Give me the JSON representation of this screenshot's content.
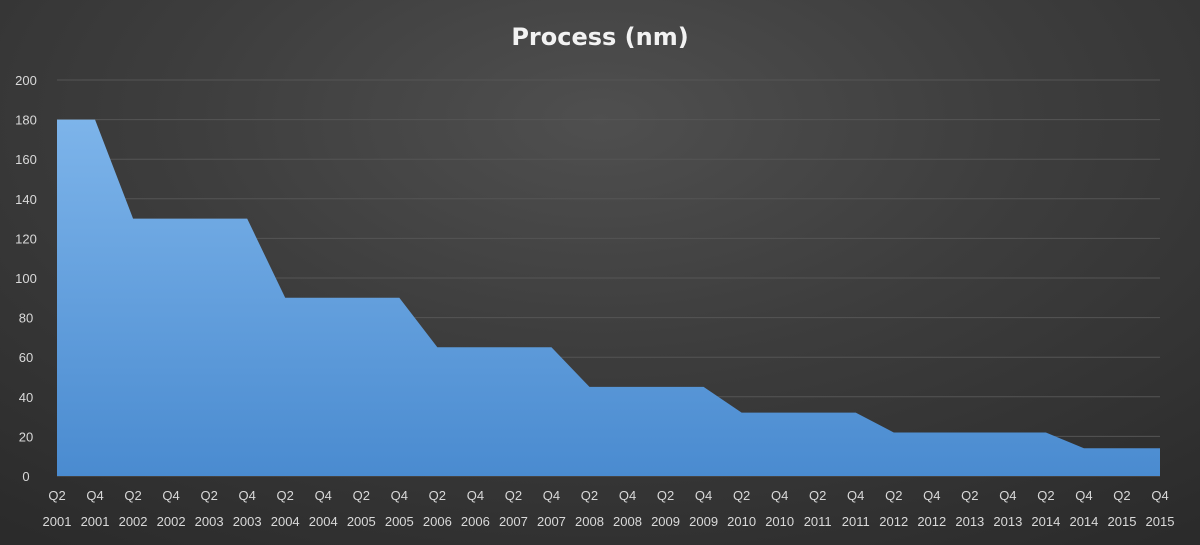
{
  "chart_data": {
    "type": "area",
    "title": "Process  (nm)",
    "xlabel": "",
    "ylabel": "",
    "ylim": [
      0,
      200
    ],
    "yticks": [
      0,
      20,
      40,
      60,
      80,
      100,
      120,
      140,
      160,
      180,
      200
    ],
    "grid": true,
    "legend": "none",
    "fill_color": "#5b9bd5",
    "categories": [
      {
        "q": "Q2",
        "y": "2001"
      },
      {
        "q": "Q4",
        "y": "2001"
      },
      {
        "q": "Q2",
        "y": "2002"
      },
      {
        "q": "Q4",
        "y": "2002"
      },
      {
        "q": "Q2",
        "y": "2003"
      },
      {
        "q": "Q4",
        "y": "2003"
      },
      {
        "q": "Q2",
        "y": "2004"
      },
      {
        "q": "Q4",
        "y": "2004"
      },
      {
        "q": "Q2",
        "y": "2005"
      },
      {
        "q": "Q4",
        "y": "2005"
      },
      {
        "q": "Q2",
        "y": "2006"
      },
      {
        "q": "Q4",
        "y": "2006"
      },
      {
        "q": "Q2",
        "y": "2007"
      },
      {
        "q": "Q4",
        "y": "2007"
      },
      {
        "q": "Q2",
        "y": "2008"
      },
      {
        "q": "Q4",
        "y": "2008"
      },
      {
        "q": "Q2",
        "y": "2009"
      },
      {
        "q": "Q4",
        "y": "2009"
      },
      {
        "q": "Q2",
        "y": "2010"
      },
      {
        "q": "Q4",
        "y": "2010"
      },
      {
        "q": "Q2",
        "y": "2011"
      },
      {
        "q": "Q4",
        "y": "2011"
      },
      {
        "q": "Q2",
        "y": "2012"
      },
      {
        "q": "Q4",
        "y": "2012"
      },
      {
        "q": "Q2",
        "y": "2013"
      },
      {
        "q": "Q4",
        "y": "2013"
      },
      {
        "q": "Q2",
        "y": "2014"
      },
      {
        "q": "Q4",
        "y": "2014"
      },
      {
        "q": "Q2",
        "y": "2015"
      },
      {
        "q": "Q4",
        "y": "2015"
      }
    ],
    "values": [
      180,
      180,
      130,
      130,
      130,
      130,
      90,
      90,
      90,
      90,
      65,
      65,
      65,
      65,
      45,
      45,
      45,
      45,
      32,
      32,
      32,
      32,
      22,
      22,
      22,
      22,
      22,
      14,
      14,
      14
    ]
  }
}
